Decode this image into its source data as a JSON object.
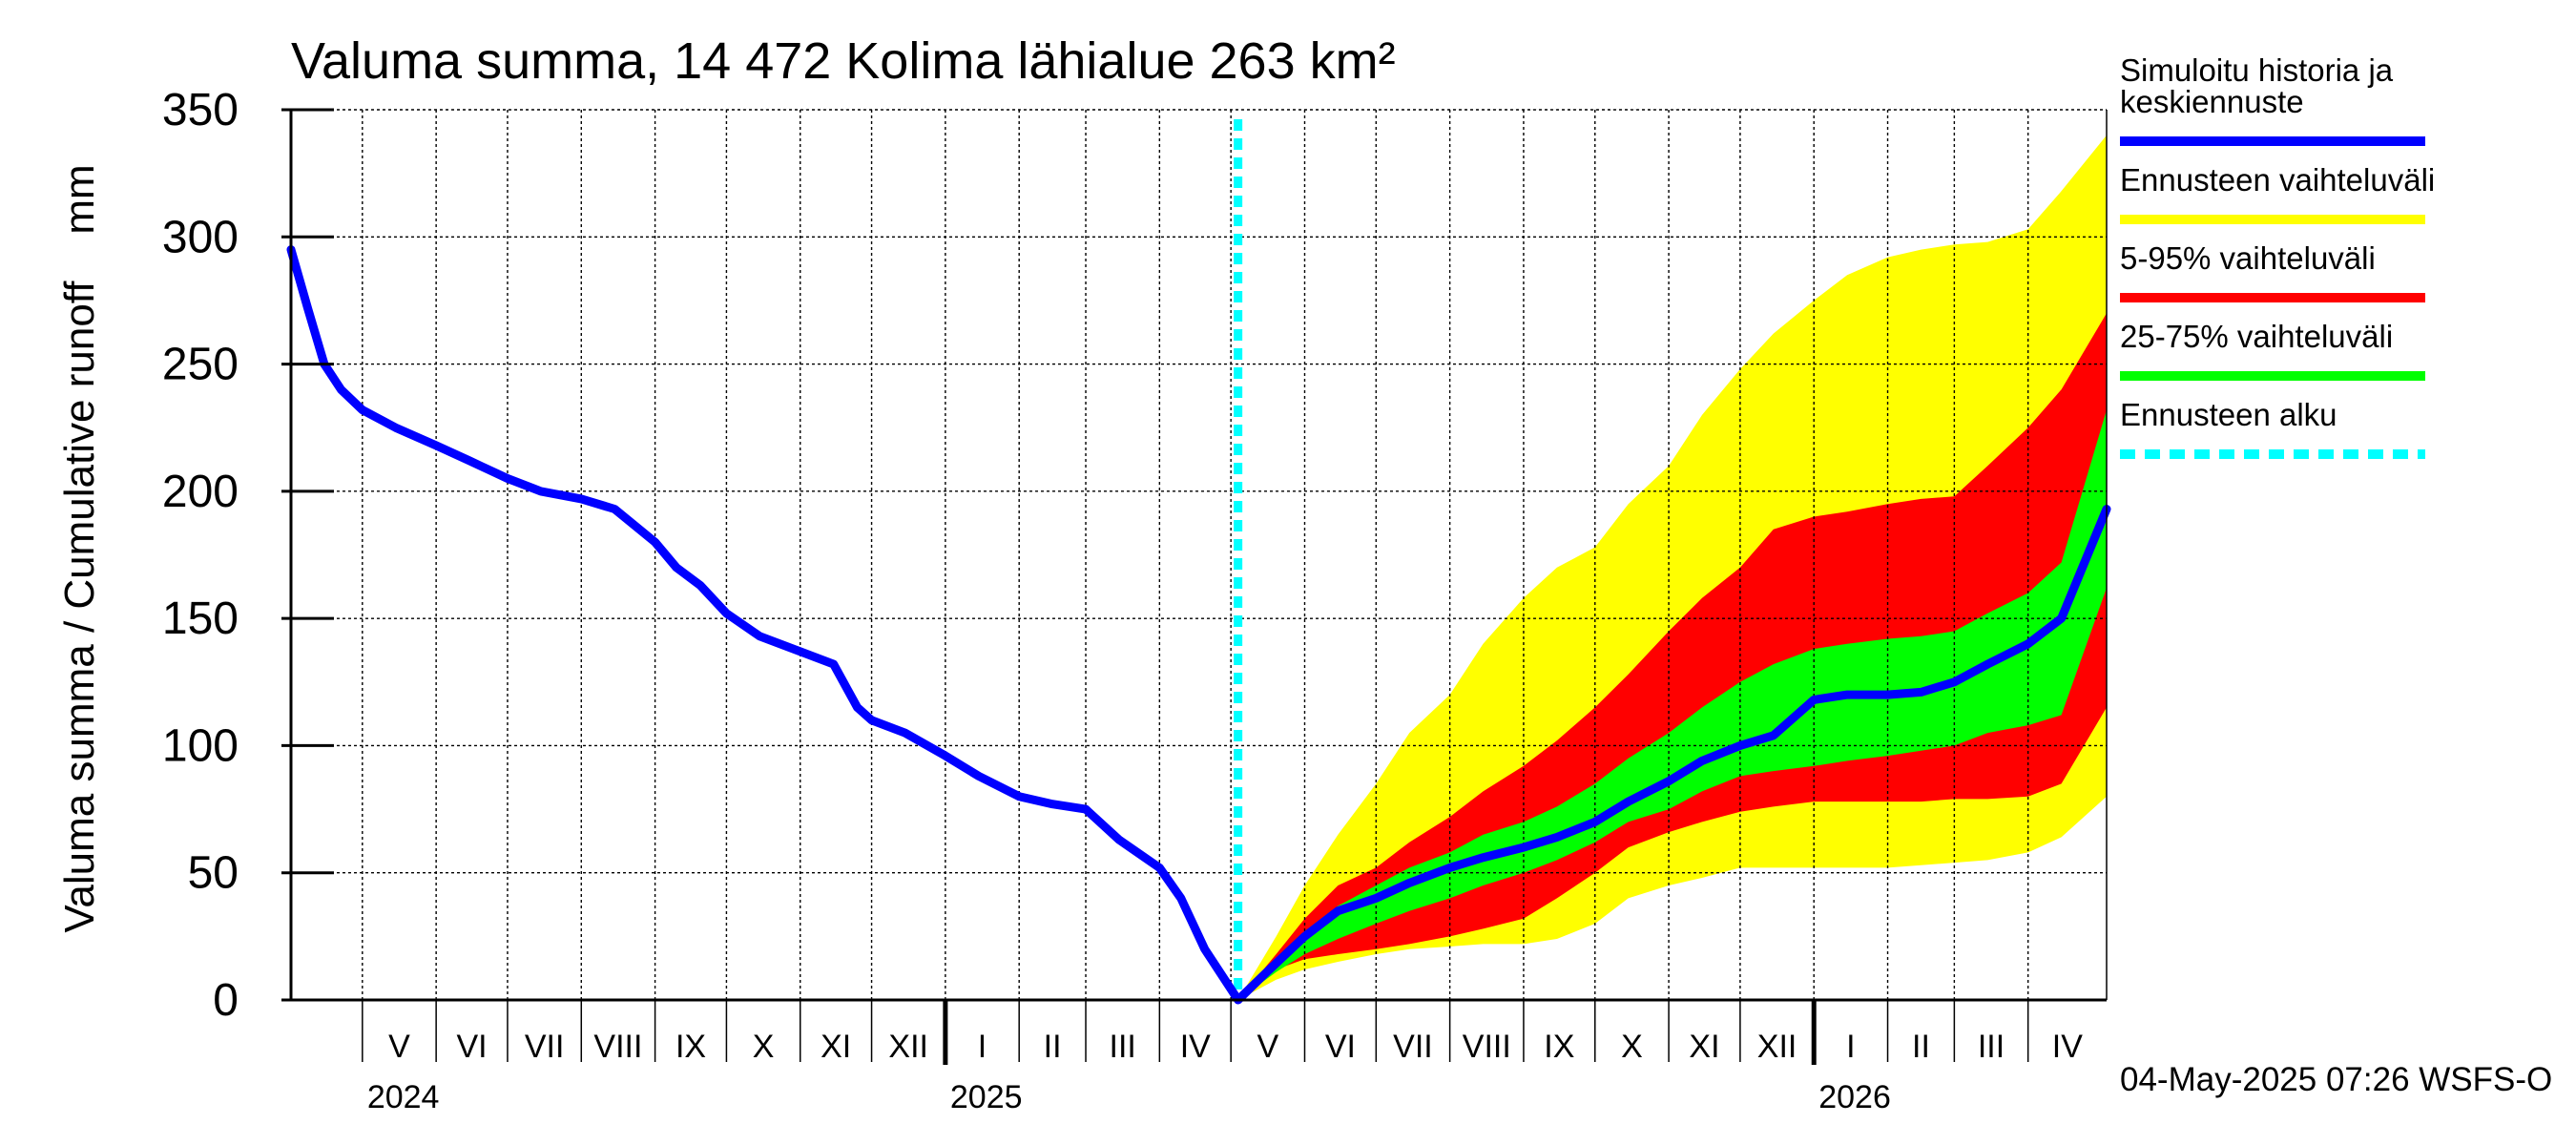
{
  "chart_data": {
    "type": "area",
    "title": "Valuma summa, 14 472 Kolima lähialue 263 km²",
    "ylabel": "Valuma summa / Cumulative runoff    mm",
    "ylim": [
      0,
      350
    ],
    "yticks": [
      0,
      50,
      100,
      150,
      200,
      250,
      300,
      350
    ],
    "grid": true,
    "x_range": [
      "2024-04-01",
      "2026-05-04"
    ],
    "forecast_start": "2025-05-04",
    "months": [
      {
        "label": "V",
        "start": "2024-05-01"
      },
      {
        "label": "VI",
        "start": "2024-06-01"
      },
      {
        "label": "VII",
        "start": "2024-07-01"
      },
      {
        "label": "VIII",
        "start": "2024-08-01"
      },
      {
        "label": "IX",
        "start": "2024-09-01"
      },
      {
        "label": "X",
        "start": "2024-10-01"
      },
      {
        "label": "XI",
        "start": "2024-11-01"
      },
      {
        "label": "XII",
        "start": "2024-12-01"
      },
      {
        "label": "I",
        "start": "2025-01-01"
      },
      {
        "label": "II",
        "start": "2025-02-01"
      },
      {
        "label": "III",
        "start": "2025-03-01"
      },
      {
        "label": "IV",
        "start": "2025-04-01"
      },
      {
        "label": "V",
        "start": "2025-05-01"
      },
      {
        "label": "VI",
        "start": "2025-06-01"
      },
      {
        "label": "VII",
        "start": "2025-07-01"
      },
      {
        "label": "VIII",
        "start": "2025-08-01"
      },
      {
        "label": "IX",
        "start": "2025-09-01"
      },
      {
        "label": "X",
        "start": "2025-10-01"
      },
      {
        "label": "XI",
        "start": "2025-11-01"
      },
      {
        "label": "XII",
        "start": "2025-12-01"
      },
      {
        "label": "I",
        "start": "2026-01-01"
      },
      {
        "label": "II",
        "start": "2026-02-01"
      },
      {
        "label": "III",
        "start": "2026-03-01"
      },
      {
        "label": "IV",
        "start": "2026-04-01"
      }
    ],
    "years": [
      {
        "label": "2024",
        "start": "2024-05-01"
      },
      {
        "label": "2025",
        "start": "2025-01-01"
      },
      {
        "label": "2026",
        "start": "2026-01-01"
      }
    ],
    "series": [
      {
        "name": "Ennusteen vaihteluväli",
        "kind": "band",
        "color": "#ffff00",
        "x": [
          "2025-05-04",
          "2025-05-20",
          "2025-06-01",
          "2025-06-15",
          "2025-07-01",
          "2025-07-15",
          "2025-08-01",
          "2025-08-15",
          "2025-09-01",
          "2025-09-15",
          "2025-10-01",
          "2025-10-15",
          "2025-11-01",
          "2025-11-15",
          "2025-12-01",
          "2025-12-15",
          "2026-01-01",
          "2026-01-15",
          "2026-02-01",
          "2026-02-15",
          "2026-03-01",
          "2026-03-15",
          "2026-04-01",
          "2026-04-15",
          "2026-05-04"
        ],
        "high": [
          0,
          25,
          45,
          65,
          85,
          105,
          120,
          140,
          158,
          170,
          178,
          195,
          210,
          230,
          248,
          262,
          275,
          285,
          292,
          295,
          297,
          298,
          303,
          318,
          340
        ],
        "low": [
          0,
          8,
          12,
          15,
          18,
          20,
          21,
          22,
          22,
          24,
          30,
          40,
          45,
          48,
          52,
          52,
          52,
          52,
          52,
          53,
          54,
          55,
          58,
          64,
          80
        ]
      },
      {
        "name": "5-95% vaihteluväli",
        "kind": "band",
        "color": "#ff0000",
        "x": [
          "2025-05-04",
          "2025-05-20",
          "2025-06-01",
          "2025-06-15",
          "2025-07-01",
          "2025-07-15",
          "2025-08-01",
          "2025-08-15",
          "2025-09-01",
          "2025-09-15",
          "2025-10-01",
          "2025-10-15",
          "2025-11-01",
          "2025-11-15",
          "2025-12-01",
          "2025-12-15",
          "2026-01-01",
          "2026-01-15",
          "2026-02-01",
          "2026-02-15",
          "2026-03-01",
          "2026-03-15",
          "2026-04-01",
          "2026-04-15",
          "2026-05-04"
        ],
        "high": [
          0,
          18,
          32,
          45,
          52,
          62,
          72,
          82,
          92,
          102,
          115,
          128,
          145,
          158,
          170,
          185,
          190,
          192,
          195,
          197,
          198,
          210,
          225,
          240,
          270
        ],
        "low": [
          0,
          12,
          16,
          18,
          20,
          22,
          25,
          28,
          32,
          40,
          50,
          60,
          66,
          70,
          74,
          76,
          78,
          78,
          78,
          78,
          79,
          79,
          80,
          85,
          115
        ]
      },
      {
        "name": "25-75% vaihteluväli",
        "kind": "band",
        "color": "#00ff00",
        "x": [
          "2025-05-04",
          "2025-05-20",
          "2025-06-01",
          "2025-06-15",
          "2025-07-01",
          "2025-07-15",
          "2025-08-01",
          "2025-08-15",
          "2025-09-01",
          "2025-09-15",
          "2025-10-01",
          "2025-10-15",
          "2025-11-01",
          "2025-11-15",
          "2025-12-01",
          "2025-12-15",
          "2026-01-01",
          "2026-01-15",
          "2026-02-01",
          "2026-02-15",
          "2026-03-01",
          "2026-03-15",
          "2026-04-01",
          "2026-04-15",
          "2026-05-04"
        ],
        "high": [
          0,
          14,
          27,
          37,
          45,
          52,
          58,
          65,
          70,
          76,
          85,
          95,
          105,
          115,
          125,
          132,
          138,
          140,
          142,
          143,
          145,
          152,
          160,
          172,
          232
        ],
        "low": [
          0,
          11,
          18,
          24,
          30,
          35,
          40,
          45,
          50,
          55,
          62,
          70,
          75,
          82,
          88,
          90,
          92,
          94,
          96,
          98,
          100,
          105,
          108,
          112,
          162
        ]
      },
      {
        "name": "Simuloitu historia ja keskiennuste",
        "kind": "line",
        "color": "#0000ff",
        "x": [
          "2024-04-01",
          "2024-04-08",
          "2024-04-15",
          "2024-04-22",
          "2024-05-01",
          "2024-05-15",
          "2024-06-01",
          "2024-06-15",
          "2024-07-01",
          "2024-07-15",
          "2024-08-01",
          "2024-08-15",
          "2024-09-01",
          "2024-09-10",
          "2024-09-20",
          "2024-10-01",
          "2024-10-15",
          "2024-11-01",
          "2024-11-15",
          "2024-11-25",
          "2024-12-01",
          "2024-12-15",
          "2025-01-01",
          "2025-01-15",
          "2025-02-01",
          "2025-02-15",
          "2025-03-01",
          "2025-03-15",
          "2025-04-01",
          "2025-04-10",
          "2025-04-20",
          "2025-05-04",
          "2025-05-15",
          "2025-06-01",
          "2025-06-15",
          "2025-07-01",
          "2025-07-15",
          "2025-08-01",
          "2025-08-15",
          "2025-09-01",
          "2025-09-15",
          "2025-10-01",
          "2025-10-15",
          "2025-11-01",
          "2025-11-15",
          "2025-12-01",
          "2025-12-15",
          "2026-01-01",
          "2026-01-15",
          "2026-02-01",
          "2026-02-15",
          "2026-03-01",
          "2026-03-15",
          "2026-04-01",
          "2026-04-15",
          "2026-05-04"
        ],
        "y": [
          295,
          272,
          250,
          240,
          232,
          225,
          218,
          212,
          205,
          200,
          197,
          193,
          180,
          170,
          163,
          152,
          143,
          137,
          132,
          115,
          110,
          105,
          96,
          88,
          80,
          77,
          75,
          63,
          52,
          40,
          20,
          0,
          10,
          25,
          35,
          40,
          46,
          52,
          56,
          60,
          64,
          70,
          78,
          86,
          94,
          100,
          104,
          118,
          120,
          120,
          121,
          125,
          132,
          140,
          150,
          193
        ]
      }
    ],
    "legend": {
      "placement": "right",
      "items": [
        {
          "label": "Simuloitu historia ja keskiennuste",
          "color": "#0000ff",
          "style": "solid"
        },
        {
          "label": "Ennusteen vaihteluväli",
          "color": "#ffff00",
          "style": "solid"
        },
        {
          "label": "5-95% vaihteluväli",
          "color": "#ff0000",
          "style": "solid"
        },
        {
          "label": "25-75% vaihteluväli",
          "color": "#00ff00",
          "style": "solid"
        },
        {
          "label": "Ennusteen alku",
          "color": "#00ffff",
          "style": "dashed"
        }
      ]
    },
    "footer": "04-May-2025 07:26 WSFS-O"
  }
}
